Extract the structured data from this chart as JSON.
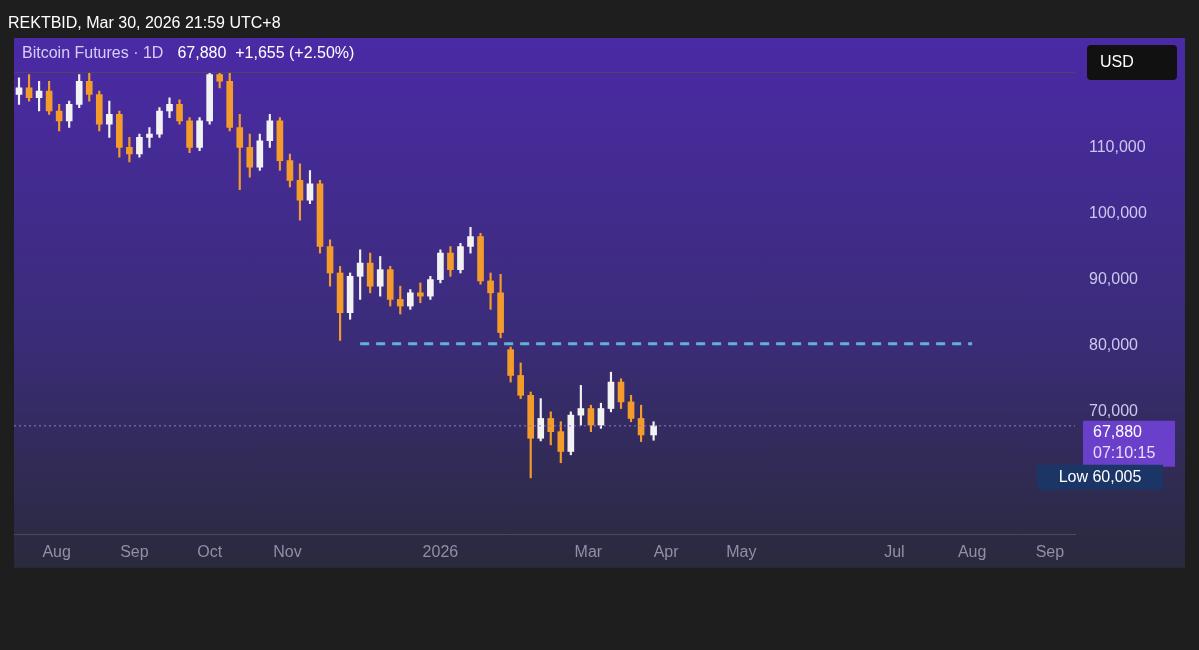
{
  "chart_data": {
    "type": "candlestick",
    "title": "Bitcoin Futures · 1D",
    "subtitle": "67,880  +1,655 (+2.50%)",
    "x": [
      "2025-07-17",
      "2025-07-21",
      "2025-07-25",
      "2025-07-29",
      "2025-08-02",
      "2025-08-06",
      "2025-08-10",
      "2025-08-14",
      "2025-08-18",
      "2025-08-22",
      "2025-08-26",
      "2025-08-30",
      "2025-09-03",
      "2025-09-07",
      "2025-09-11",
      "2025-09-15",
      "2025-09-19",
      "2025-09-23",
      "2025-09-27",
      "2025-10-01",
      "2025-10-05",
      "2025-10-09",
      "2025-10-13",
      "2025-10-17",
      "2025-10-21",
      "2025-10-25",
      "2025-10-29",
      "2025-11-02",
      "2025-11-06",
      "2025-11-10",
      "2025-11-14",
      "2025-11-18",
      "2025-11-22",
      "2025-11-26",
      "2025-11-30",
      "2025-12-04",
      "2025-12-08",
      "2025-12-12",
      "2025-12-16",
      "2025-12-20",
      "2025-12-24",
      "2025-12-28",
      "2026-01-01",
      "2026-01-05",
      "2026-01-09",
      "2026-01-13",
      "2026-01-17",
      "2026-01-21",
      "2026-01-25",
      "2026-01-29",
      "2026-02-02",
      "2026-02-06",
      "2026-02-10",
      "2026-02-14",
      "2026-02-18",
      "2026-02-22",
      "2026-02-26",
      "2026-03-02",
      "2026-03-06",
      "2026-03-10",
      "2026-03-14",
      "2026-03-18",
      "2026-03-22",
      "2026-03-27"
    ],
    "ohlc": [
      [
        118000,
        120500,
        116500,
        119000
      ],
      [
        119000,
        121000,
        117000,
        117500
      ],
      [
        117500,
        120000,
        115500,
        118500
      ],
      [
        118500,
        120000,
        115000,
        115500
      ],
      [
        115500,
        116500,
        112500,
        114000
      ],
      [
        114000,
        117000,
        113000,
        116500
      ],
      [
        116500,
        121000,
        116000,
        120000
      ],
      [
        120000,
        121300,
        117000,
        118000
      ],
      [
        118000,
        118500,
        112500,
        113500
      ],
      [
        113500,
        117000,
        111500,
        115000
      ],
      [
        115000,
        115500,
        108500,
        110000
      ],
      [
        110000,
        111500,
        107800,
        109000
      ],
      [
        109000,
        112000,
        108500,
        111500
      ],
      [
        111500,
        113000,
        110000,
        112000
      ],
      [
        112000,
        116000,
        111500,
        115500
      ],
      [
        115500,
        117500,
        114500,
        116500
      ],
      [
        116500,
        117200,
        113500,
        114000
      ],
      [
        114000,
        114500,
        109200,
        110000
      ],
      [
        110000,
        114500,
        109500,
        114000
      ],
      [
        114000,
        121300,
        113500,
        121000
      ],
      [
        121000,
        121300,
        119000,
        120000
      ],
      [
        120000,
        121300,
        112500,
        113000
      ],
      [
        113000,
        115000,
        103600,
        110000
      ],
      [
        110000,
        112000,
        105500,
        107000
      ],
      [
        107000,
        112000,
        106500,
        111000
      ],
      [
        111000,
        115000,
        110000,
        114000
      ],
      [
        114000,
        114500,
        106500,
        108000
      ],
      [
        108000,
        109000,
        104000,
        105000
      ],
      [
        105000,
        107500,
        99000,
        102000
      ],
      [
        102000,
        106500,
        101500,
        104500
      ],
      [
        104500,
        105000,
        94000,
        95000
      ],
      [
        95000,
        96000,
        89000,
        91000
      ],
      [
        91000,
        92000,
        80800,
        85000
      ],
      [
        85000,
        91000,
        84000,
        90500
      ],
      [
        90500,
        94500,
        87000,
        92500
      ],
      [
        92500,
        94000,
        88000,
        89000
      ],
      [
        89000,
        93500,
        87500,
        91500
      ],
      [
        91500,
        92000,
        86000,
        87000
      ],
      [
        87000,
        89000,
        84800,
        86000
      ],
      [
        86000,
        88500,
        85500,
        88000
      ],
      [
        88000,
        89500,
        86500,
        87500
      ],
      [
        87500,
        90500,
        87000,
        90000
      ],
      [
        90000,
        94500,
        89500,
        94000
      ],
      [
        94000,
        95000,
        90500,
        91500
      ],
      [
        91500,
        95500,
        91000,
        95000
      ],
      [
        95000,
        97900,
        94000,
        96500
      ],
      [
        96500,
        97000,
        89300,
        89800
      ],
      [
        89800,
        91000,
        85500,
        88000
      ],
      [
        88000,
        90800,
        81200,
        82000
      ],
      [
        79400,
        79800,
        74500,
        75500
      ],
      [
        75500,
        77400,
        72000,
        72500
      ],
      [
        72500,
        73000,
        60005,
        66000
      ],
      [
        66000,
        72000,
        65600,
        69000
      ],
      [
        69000,
        70000,
        65000,
        67000
      ],
      [
        67000,
        68500,
        62300,
        64000
      ],
      [
        64000,
        70000,
        63500,
        69500
      ],
      [
        69500,
        74000,
        68000,
        70500
      ],
      [
        70500,
        71000,
        67000,
        68000
      ],
      [
        68000,
        71300,
        67500,
        70500
      ],
      [
        70500,
        76000,
        70000,
        74500
      ],
      [
        74500,
        75000,
        70500,
        71500
      ],
      [
        71500,
        72500,
        68500,
        69000
      ],
      [
        69000,
        71000,
        65500,
        66500
      ],
      [
        66500,
        68500,
        65700,
        67880
      ]
    ],
    "colors": [
      "#f2f2f2",
      "#f39c2b",
      "#f2f2f2",
      "#f39c2b",
      "#f39c2b",
      "#f2f2f2",
      "#f2f2f2",
      "#f39c2b",
      "#f39c2b",
      "#f2f2f2",
      "#f39c2b",
      "#f39c2b",
      "#f2f2f2",
      "#f2f2f2",
      "#f2f2f2",
      "#f2f2f2",
      "#f39c2b",
      "#f39c2b",
      "#f2f2f2",
      "#f2f2f2",
      "#f39c2b",
      "#f39c2b",
      "#f39c2b",
      "#f39c2b",
      "#f2f2f2",
      "#f2f2f2",
      "#f39c2b",
      "#f39c2b",
      "#f39c2b",
      "#f2f2f2",
      "#f39c2b",
      "#f39c2b",
      "#f39c2b",
      "#f2f2f2",
      "#f2f2f2",
      "#f39c2b",
      "#f2f2f2",
      "#f39c2b",
      "#f39c2b",
      "#f2f2f2",
      "#f39c2b",
      "#f2f2f2",
      "#f2f2f2",
      "#f39c2b",
      "#f2f2f2",
      "#f2f2f2",
      "#f39c2b",
      "#f39c2b",
      "#f39c2b",
      "#f39c2b",
      "#f39c2b",
      "#f39c2b",
      "#f2f2f2",
      "#f39c2b",
      "#f39c2b",
      "#f2f2f2",
      "#f2f2f2",
      "#f39c2b",
      "#f2f2f2",
      "#f2f2f2",
      "#f39c2b",
      "#f39c2b",
      "#f39c2b",
      "#f2f2f2"
    ],
    "series": [
      {
        "type": "line",
        "x": [
          "2025-11-30",
          "2026-08-01"
        ],
        "values": [
          80300,
          80300
        ],
        "color": "#5fb4d6",
        "line_style": "dashed"
      }
    ],
    "xlim": [
      "2025-07-15",
      "2026-09-11"
    ],
    "xticks": [
      {
        "value": "2025-08-01",
        "label": "Aug"
      },
      {
        "value": "2025-09-01",
        "label": "Sep"
      },
      {
        "value": "2025-10-01",
        "label": "Oct"
      },
      {
        "value": "2025-11-01",
        "label": "Nov"
      },
      {
        "value": "2026-01-01",
        "label": "2026"
      },
      {
        "value": "2026-03-01",
        "label": "Mar"
      },
      {
        "value": "2026-04-01",
        "label": "Apr"
      },
      {
        "value": "2026-05-01",
        "label": "May"
      },
      {
        "value": "2026-07-01",
        "label": "Jul"
      },
      {
        "value": "2026-08-01",
        "label": "Aug"
      },
      {
        "value": "2026-09-01",
        "label": "Sep"
      }
    ],
    "ylim": [
      51400,
      121400
    ],
    "yticks": [
      {
        "value": 70000,
        "label": "70,000"
      },
      {
        "value": 80000,
        "label": "80,000"
      },
      {
        "value": 90000,
        "label": "90,000"
      },
      {
        "value": 100000,
        "label": "100,000"
      },
      {
        "value": 110000,
        "label": "110,000"
      }
    ],
    "ref_lines": [
      {
        "axis": "y",
        "value": 67880,
        "label": "67,880",
        "color": "#8e7bd0",
        "line_style": "dotted"
      }
    ],
    "annotations": [
      "REKTBID, Mar 30, 2026 21:59 UTC+8",
      "USD",
      "07:10:15",
      "Low 60,005"
    ],
    "grid": false,
    "legend": false
  }
}
